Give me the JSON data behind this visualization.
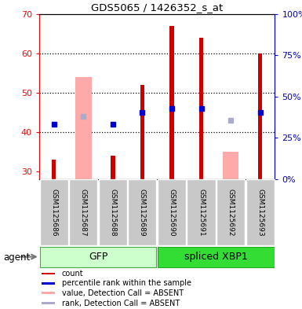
{
  "title": "GDS5065 / 1426352_s_at",
  "samples": [
    "GSM1125686",
    "GSM1125687",
    "GSM1125688",
    "GSM1125689",
    "GSM1125690",
    "GSM1125691",
    "GSM1125692",
    "GSM1125693"
  ],
  "ylim_left": [
    28,
    70
  ],
  "ylim_right": [
    0,
    100
  ],
  "yticks_left": [
    30,
    40,
    50,
    60,
    70
  ],
  "yticks_right": [
    0,
    25,
    50,
    75,
    100
  ],
  "count_values": [
    33,
    null,
    34,
    52,
    67,
    64,
    null,
    60
  ],
  "percentile_values": [
    42,
    null,
    42,
    45,
    46,
    46,
    null,
    45
  ],
  "absent_value_bars": [
    null,
    54,
    null,
    null,
    null,
    null,
    35,
    null
  ],
  "absent_rank_bars": [
    null,
    44,
    null,
    null,
    null,
    null,
    43,
    null
  ],
  "count_color": "#cc0000",
  "percentile_color": "#0000cc",
  "absent_value_color": "#ffaaaa",
  "absent_rank_color": "#aaaacc",
  "gfp_color_light": "#ccffcc",
  "gfp_color_dark": "#44dd44",
  "xbp1_color": "#33dd33",
  "sample_box_color": "#c8c8c8",
  "legend_items": [
    {
      "label": "count",
      "color": "#cc0000"
    },
    {
      "label": "percentile rank within the sample",
      "color": "#0000cc"
    },
    {
      "label": "value, Detection Call = ABSENT",
      "color": "#ffaaaa"
    },
    {
      "label": "rank, Detection Call = ABSENT",
      "color": "#aaaacc"
    }
  ]
}
